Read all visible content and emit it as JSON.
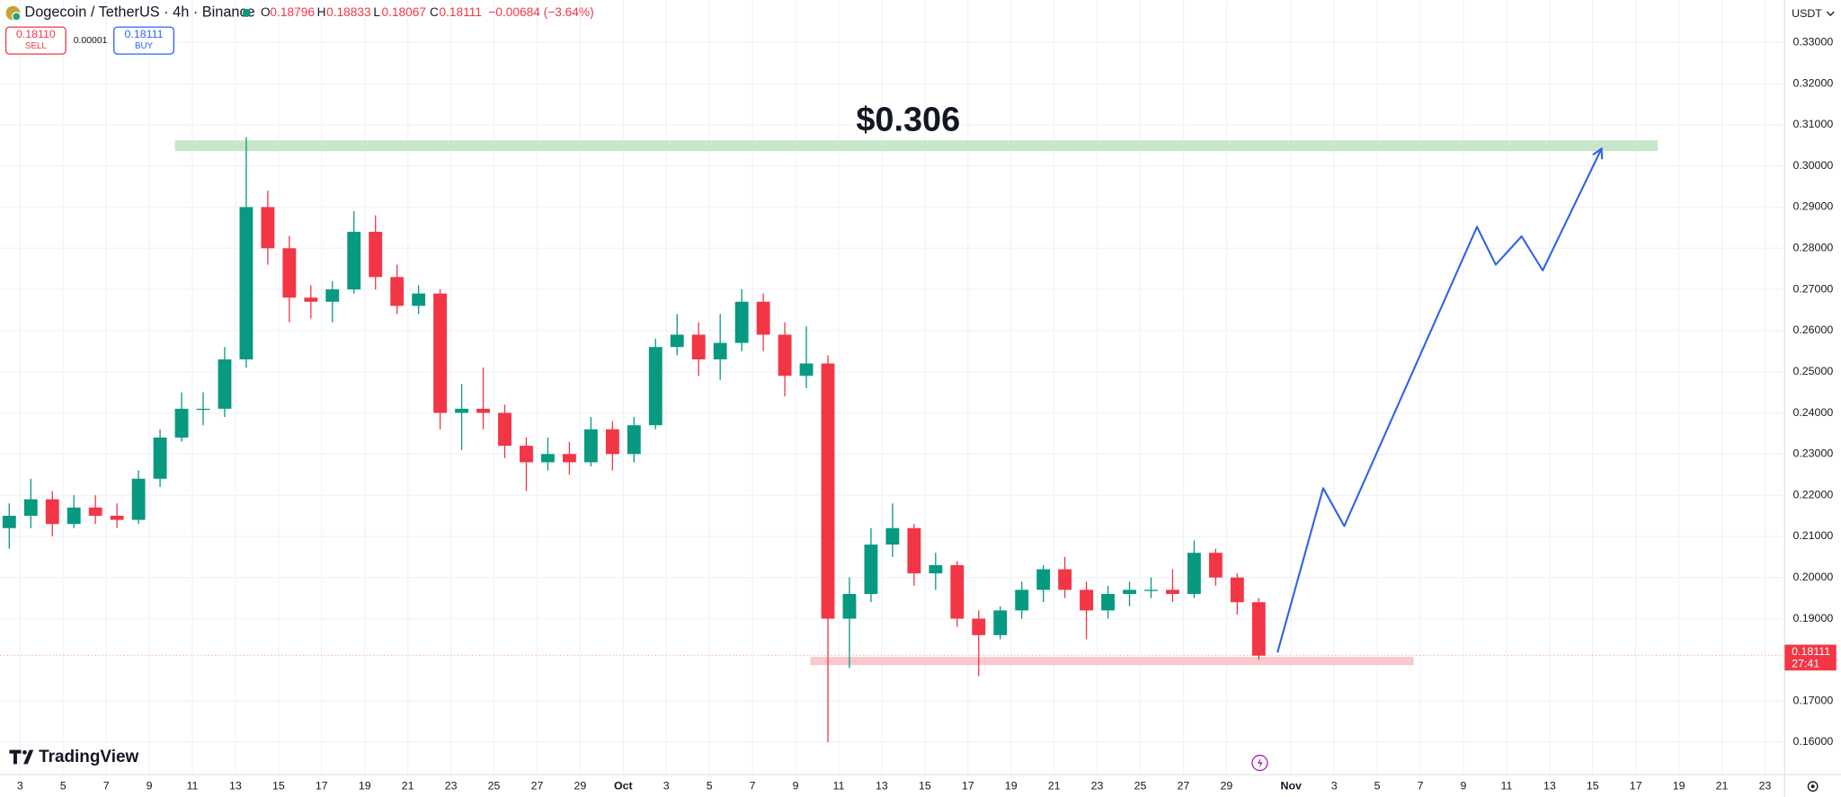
{
  "header": {
    "symbol": "Dogecoin / TetherUS · 4h · Binance",
    "open_label": "O",
    "open": "0.18796",
    "high_label": "H",
    "high": "0.18833",
    "low_label": "L",
    "low": "0.18067",
    "close_label": "C",
    "close": "0.18111",
    "change": "−0.00684 (−3.64%)",
    "sell_price": "0.18110",
    "sell_label": "SELL",
    "spread": "0.00001",
    "buy_price": "0.18111",
    "buy_label": "BUY",
    "currency": "USDT",
    "countdown": "27:41",
    "logo": "TradingView"
  },
  "chart_data": {
    "type": "candlestick",
    "up_color": "#089981",
    "down_color": "#f23645",
    "grid": true,
    "xlim": [
      2.07,
      84.91
    ],
    "ylim": [
      0.1521,
      0.3403
    ],
    "xticks": [
      3,
      5,
      7,
      9,
      11,
      13,
      15,
      17,
      19,
      21,
      23,
      25,
      27,
      29,
      {
        "value": 31,
        "label": "Oct"
      },
      {
        "value": 33,
        "label": "3"
      },
      {
        "value": 35,
        "label": "5"
      },
      {
        "value": 37,
        "label": "7"
      },
      {
        "value": 39,
        "label": "9"
      },
      {
        "value": 41,
        "label": "11"
      },
      {
        "value": 43,
        "label": "13"
      },
      {
        "value": 45,
        "label": "15"
      },
      {
        "value": 47,
        "label": "17"
      },
      {
        "value": 49,
        "label": "19"
      },
      {
        "value": 51,
        "label": "21"
      },
      {
        "value": 53,
        "label": "23"
      },
      {
        "value": 55,
        "label": "25"
      },
      {
        "value": 57,
        "label": "27"
      },
      {
        "value": 59,
        "label": "29"
      },
      {
        "value": 62,
        "label": "Nov"
      },
      {
        "value": 64,
        "label": "3"
      },
      {
        "value": 66,
        "label": "5"
      },
      {
        "value": 68,
        "label": "7"
      },
      {
        "value": 70,
        "label": "9"
      },
      {
        "value": 72,
        "label": "11"
      },
      {
        "value": 74,
        "label": "13"
      },
      {
        "value": 76,
        "label": "15"
      },
      {
        "value": 78,
        "label": "17"
      },
      {
        "value": 80,
        "label": "19"
      },
      {
        "value": 82,
        "label": "21"
      },
      {
        "value": 84,
        "label": "23"
      }
    ],
    "yticks": [
      {
        "value": 0.33,
        "label": "0.33000"
      },
      {
        "value": 0.32,
        "label": "0.32000"
      },
      {
        "value": 0.31,
        "label": "0.31000"
      },
      {
        "value": 0.3,
        "label": "0.30000"
      },
      {
        "value": 0.29,
        "label": "0.29000"
      },
      {
        "value": 0.28,
        "label": "0.28000"
      },
      {
        "value": 0.27,
        "label": "0.27000"
      },
      {
        "value": 0.26,
        "label": "0.26000"
      },
      {
        "value": 0.25,
        "label": "0.25000"
      },
      {
        "value": 0.24,
        "label": "0.24000"
      },
      {
        "value": 0.23,
        "label": "0.23000"
      },
      {
        "value": 0.22,
        "label": "0.22000"
      },
      {
        "value": 0.21,
        "label": "0.21000"
      },
      {
        "value": 0.2,
        "label": "0.20000"
      },
      {
        "value": 0.19,
        "label": "0.19000"
      },
      {
        "value": 0.17,
        "label": "0.17000"
      },
      {
        "value": 0.16,
        "label": "0.16000"
      }
    ],
    "current_price": {
      "value": 0.18111,
      "label": "0.18111",
      "color": "#f23645"
    },
    "x": [
      2,
      3,
      4,
      5,
      6,
      7,
      8,
      9,
      10,
      11,
      12,
      13,
      14,
      15,
      16,
      17,
      18,
      19,
      20,
      21,
      22,
      23,
      24,
      25,
      26,
      27,
      28,
      29,
      30,
      31,
      32,
      33,
      34,
      35,
      36,
      37,
      38,
      39,
      40,
      41,
      42,
      43,
      44,
      45,
      46,
      47,
      48,
      49,
      50,
      51,
      52,
      53,
      54,
      55,
      56,
      57,
      58,
      59,
      60
    ],
    "open": [
      0.212,
      0.215,
      0.219,
      0.213,
      0.217,
      0.215,
      0.214,
      0.224,
      0.234,
      0.241,
      0.241,
      0.253,
      0.29,
      0.28,
      0.268,
      0.267,
      0.27,
      0.284,
      0.273,
      0.266,
      0.269,
      0.24,
      0.241,
      0.24,
      0.232,
      0.228,
      0.23,
      0.228,
      0.236,
      0.23,
      0.237,
      0.256,
      0.259,
      0.253,
      0.257,
      0.267,
      0.259,
      0.249,
      0.252,
      0.19,
      0.196,
      0.208,
      0.212,
      0.201,
      0.203,
      0.19,
      0.186,
      0.192,
      0.197,
      0.202,
      0.197,
      0.192,
      0.196,
      0.197,
      0.197,
      0.196,
      0.206,
      0.2,
      0.194
    ],
    "high": [
      0.218,
      0.224,
      0.221,
      0.22,
      0.22,
      0.218,
      0.226,
      0.236,
      0.245,
      0.245,
      0.256,
      0.307,
      0.294,
      0.283,
      0.271,
      0.272,
      0.289,
      0.288,
      0.276,
      0.271,
      0.27,
      0.247,
      0.251,
      0.242,
      0.234,
      0.234,
      0.233,
      0.239,
      0.238,
      0.239,
      0.258,
      0.264,
      0.262,
      0.264,
      0.27,
      0.269,
      0.262,
      0.261,
      0.254,
      0.2,
      0.212,
      0.218,
      0.213,
      0.206,
      0.204,
      0.192,
      0.193,
      0.199,
      0.203,
      0.205,
      0.199,
      0.198,
      0.199,
      0.2,
      0.202,
      0.209,
      0.207,
      0.201,
      0.195
    ],
    "low": [
      0.207,
      0.212,
      0.21,
      0.212,
      0.213,
      0.212,
      0.213,
      0.222,
      0.233,
      0.237,
      0.239,
      0.251,
      0.276,
      0.262,
      0.263,
      0.262,
      0.269,
      0.27,
      0.264,
      0.264,
      0.236,
      0.231,
      0.236,
      0.229,
      0.221,
      0.226,
      0.225,
      0.227,
      0.226,
      0.228,
      0.236,
      0.254,
      0.249,
      0.248,
      0.255,
      0.255,
      0.244,
      0.246,
      0.16,
      0.178,
      0.194,
      0.205,
      0.198,
      0.197,
      0.188,
      0.176,
      0.185,
      0.19,
      0.194,
      0.195,
      0.185,
      0.19,
      0.193,
      0.195,
      0.194,
      0.195,
      0.198,
      0.191,
      0.18
    ],
    "close": [
      0.215,
      0.219,
      0.213,
      0.217,
      0.215,
      0.214,
      0.224,
      0.234,
      0.241,
      0.241,
      0.253,
      0.29,
      0.28,
      0.268,
      0.267,
      0.27,
      0.284,
      0.273,
      0.266,
      0.269,
      0.24,
      0.241,
      0.24,
      0.232,
      0.228,
      0.23,
      0.228,
      0.236,
      0.23,
      0.237,
      0.256,
      0.259,
      0.253,
      0.257,
      0.267,
      0.259,
      0.249,
      0.252,
      0.19,
      0.196,
      0.208,
      0.212,
      0.201,
      0.203,
      0.19,
      0.186,
      0.192,
      0.197,
      0.202,
      0.197,
      0.192,
      0.196,
      0.197,
      0.197,
      0.196,
      0.206,
      0.2,
      0.194,
      0.181
    ],
    "target_zone": {
      "label": "$0.306",
      "x": [
        10.19,
        79.02
      ],
      "y": [
        0.3036,
        0.3062
      ],
      "color": "#c8e6c9"
    },
    "support_zone": {
      "x": [
        39.68,
        67.69
      ],
      "y": [
        0.1787,
        0.1807
      ],
      "color": "#f8c8cc"
    },
    "projection": {
      "color": "#2f62e8",
      "x": [
        61.37,
        63.49,
        64.47,
        70.63,
        71.5,
        72.7,
        73.68,
        76.41
      ],
      "y": [
        0.1818,
        0.2217,
        0.2125,
        0.2852,
        0.276,
        0.2829,
        0.2746,
        0.3042
      ]
    }
  }
}
